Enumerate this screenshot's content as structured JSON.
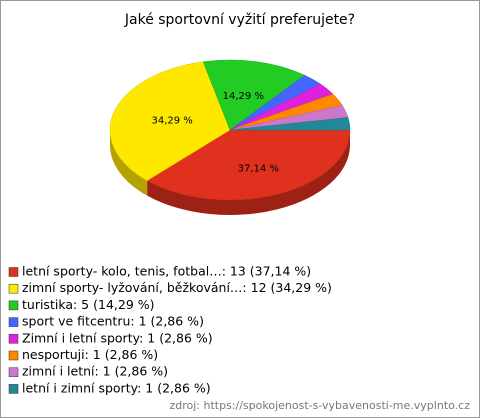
{
  "chart_data": {
    "type": "pie3d",
    "title": "Jaké sportovní vyžití preferujete?",
    "categories": [
      "letní sporty- kolo, tenis, fotbal…: 13 (37,14 %)",
      "zimní sporty- lyžování, běžkování…: 12 (34,29 %)",
      "turistika: 5 (14,29 %)",
      "sport ve fitcentru: 1 (2,86 %)",
      "Zimní i letní sporty: 1 (2,86 %)",
      "nesportuji: 1 (2,86 %)",
      "zimní i letní: 1 (2,86 %)",
      "letní i zimní sporty: 1 (2,86 %)"
    ],
    "values": [
      37.14,
      34.29,
      14.29,
      2.86,
      2.86,
      2.86,
      2.86,
      2.86
    ],
    "value_labels": [
      "37,14 %",
      "34,29 %",
      "14,29 %",
      null,
      null,
      null,
      null,
      null
    ],
    "colors": [
      "#e0301e",
      "#ffe800",
      "#22cc22",
      "#4466ff",
      "#dd22dd",
      "#ff8800",
      "#cc77cc",
      "#228899"
    ],
    "source": "zdroj: https://spokojenost-s-vybavenosti-me.vyplnto.cz"
  }
}
